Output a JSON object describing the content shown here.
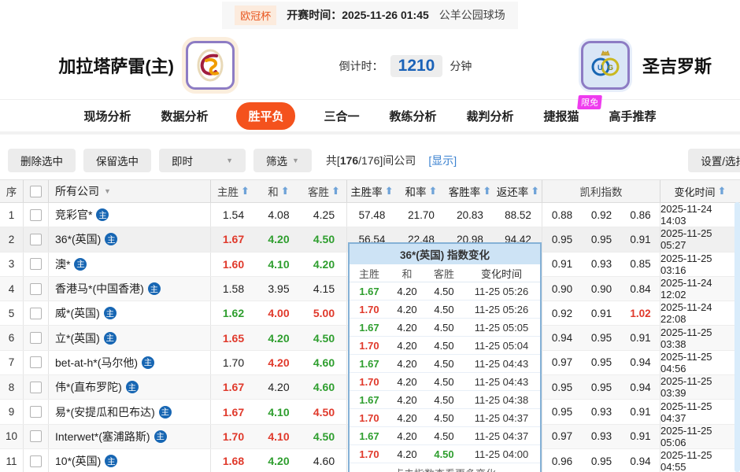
{
  "topbar": {
    "league": "欧冠杯",
    "kickoff_label": "开赛时间：",
    "kickoff_value": "2025-11-26 01:45",
    "venue": "公羊公园球场"
  },
  "header": {
    "home_name": "加拉塔萨雷(主)",
    "away_name": "圣吉罗斯",
    "home_logo": "galatasaray-crest",
    "away_logo": "union-sg-crest",
    "countdown_label": "倒计时：",
    "countdown_value": "1210",
    "countdown_unit": "分钟"
  },
  "nav": {
    "items": [
      "现场分析",
      "数据分析",
      "胜平负",
      "三合一",
      "教练分析",
      "裁判分析",
      "捷报猫",
      "高手推荐"
    ],
    "active_index": 2,
    "badge_text": "限免"
  },
  "toolbar": {
    "delete_btn": "删除选中",
    "keep_btn": "保留选中",
    "instant_dropdown": "即时",
    "filter_dropdown": "筛选",
    "count_prefix": "共[",
    "count_current": "176",
    "count_rest": "/176]间公司",
    "show_link": "[显示]",
    "settings_btn": "设置/选择"
  },
  "table": {
    "headers": {
      "index": "序",
      "company": "所有公司",
      "home": "主胜",
      "draw": "和",
      "away": "客胜",
      "home_rate": "主胜率",
      "draw_rate": "和率",
      "away_rate": "客胜率",
      "return_rate": "返还率",
      "kelly": "凯利指数",
      "change_time": "变化时间"
    },
    "home_badge": "主",
    "rows": [
      {
        "no": "1",
        "company": "竞彩官*",
        "odds": [
          [
            "1.54",
            "k"
          ],
          [
            "4.08",
            "k"
          ],
          [
            "4.25",
            "k"
          ]
        ],
        "rates": [
          "57.48",
          "21.70",
          "20.83",
          "88.52"
        ],
        "kelly": [
          [
            "0.88",
            "k"
          ],
          [
            "0.92",
            "k"
          ],
          [
            "0.86",
            "k"
          ]
        ],
        "time": "2025-11-24 14:03",
        "hl": false
      },
      {
        "no": "2",
        "company": "36*(英国)",
        "odds": [
          [
            "1.67",
            "r"
          ],
          [
            "4.20",
            "g"
          ],
          [
            "4.50",
            "g"
          ]
        ],
        "rates": [
          "56.54",
          "22.48",
          "20.98",
          "94.42"
        ],
        "kelly": [
          [
            "0.95",
            "k"
          ],
          [
            "0.95",
            "k"
          ],
          [
            "0.91",
            "k"
          ]
        ],
        "time": "2025-11-25 05:27",
        "hl": true
      },
      {
        "no": "3",
        "company": "澳*",
        "odds": [
          [
            "1.60",
            "r"
          ],
          [
            "4.10",
            "g"
          ],
          [
            "4.20",
            "g"
          ]
        ],
        "rates": [
          "",
          "",
          "",
          ""
        ],
        "kelly": [
          [
            "0.91",
            "k"
          ],
          [
            "0.93",
            "k"
          ],
          [
            "0.85",
            "k"
          ]
        ],
        "time": "2025-11-25 03:16",
        "hl": false
      },
      {
        "no": "4",
        "company": "香港马*(中国香港)",
        "odds": [
          [
            "1.58",
            "k"
          ],
          [
            "3.95",
            "k"
          ],
          [
            "4.15",
            "k"
          ]
        ],
        "rates": [
          "",
          "",
          "",
          ""
        ],
        "kelly": [
          [
            "0.90",
            "k"
          ],
          [
            "0.90",
            "k"
          ],
          [
            "0.84",
            "k"
          ]
        ],
        "time": "2025-11-24 12:02",
        "hl": false
      },
      {
        "no": "5",
        "company": "威*(英国)",
        "odds": [
          [
            "1.62",
            "g"
          ],
          [
            "4.00",
            "r"
          ],
          [
            "5.00",
            "r"
          ]
        ],
        "rates": [
          "",
          "",
          "",
          ""
        ],
        "kelly": [
          [
            "0.92",
            "k"
          ],
          [
            "0.91",
            "k"
          ],
          [
            "1.02",
            "r"
          ]
        ],
        "time": "2025-11-24 22:08",
        "hl": false
      },
      {
        "no": "6",
        "company": "立*(英国)",
        "odds": [
          [
            "1.65",
            "r"
          ],
          [
            "4.20",
            "g"
          ],
          [
            "4.50",
            "g"
          ]
        ],
        "rates": [
          "",
          "",
          "",
          ""
        ],
        "kelly": [
          [
            "0.94",
            "k"
          ],
          [
            "0.95",
            "k"
          ],
          [
            "0.91",
            "k"
          ]
        ],
        "time": "2025-11-25 03:38",
        "hl": false
      },
      {
        "no": "7",
        "company": "bet-at-h*(马尔他)",
        "odds": [
          [
            "1.70",
            "k"
          ],
          [
            "4.20",
            "r"
          ],
          [
            "4.60",
            "g"
          ]
        ],
        "rates": [
          "",
          "",
          "",
          ""
        ],
        "kelly": [
          [
            "0.97",
            "k"
          ],
          [
            "0.95",
            "k"
          ],
          [
            "0.94",
            "k"
          ]
        ],
        "time": "2025-11-25 04:56",
        "hl": false
      },
      {
        "no": "8",
        "company": "伟*(直布罗陀)",
        "odds": [
          [
            "1.67",
            "r"
          ],
          [
            "4.20",
            "k"
          ],
          [
            "4.60",
            "g"
          ]
        ],
        "rates": [
          "",
          "",
          "",
          ""
        ],
        "kelly": [
          [
            "0.95",
            "k"
          ],
          [
            "0.95",
            "k"
          ],
          [
            "0.94",
            "k"
          ]
        ],
        "time": "2025-11-25 03:39",
        "hl": false
      },
      {
        "no": "9",
        "company": "易*(安提瓜和巴布达)",
        "odds": [
          [
            "1.67",
            "r"
          ],
          [
            "4.10",
            "g"
          ],
          [
            "4.50",
            "r"
          ]
        ],
        "rates": [
          "",
          "",
          "",
          ""
        ],
        "kelly": [
          [
            "0.95",
            "k"
          ],
          [
            "0.93",
            "k"
          ],
          [
            "0.91",
            "k"
          ]
        ],
        "time": "2025-11-25 04:37",
        "hl": false
      },
      {
        "no": "10",
        "company": "Interwet*(塞浦路斯)",
        "odds": [
          [
            "1.70",
            "r"
          ],
          [
            "4.10",
            "r"
          ],
          [
            "4.50",
            "g"
          ]
        ],
        "rates": [
          "",
          "",
          "",
          ""
        ],
        "kelly": [
          [
            "0.97",
            "k"
          ],
          [
            "0.93",
            "k"
          ],
          [
            "0.91",
            "k"
          ]
        ],
        "time": "2025-11-25 05:06",
        "hl": false
      },
      {
        "no": "11",
        "company": "10*(英国)",
        "odds": [
          [
            "1.68",
            "r"
          ],
          [
            "4.20",
            "g"
          ],
          [
            "4.60",
            "k"
          ]
        ],
        "rates": [
          "",
          "",
          "",
          ""
        ],
        "kelly": [
          [
            "0.96",
            "k"
          ],
          [
            "0.95",
            "k"
          ],
          [
            "0.94",
            "k"
          ]
        ],
        "time": "2025-11-25 04:55",
        "hl": false
      }
    ]
  },
  "popup": {
    "title": "36*(英国) 指数变化",
    "col_home": "主胜",
    "col_draw": "和",
    "col_away": "客胜",
    "col_time": "变化时间",
    "rows": [
      {
        "h": [
          "1.67",
          "g"
        ],
        "d": [
          "4.20",
          "k"
        ],
        "a": [
          "4.50",
          "k"
        ],
        "t": "11-25 05:26"
      },
      {
        "h": [
          "1.70",
          "r"
        ],
        "d": [
          "4.20",
          "k"
        ],
        "a": [
          "4.50",
          "k"
        ],
        "t": "11-25 05:26"
      },
      {
        "h": [
          "1.67",
          "g"
        ],
        "d": [
          "4.20",
          "k"
        ],
        "a": [
          "4.50",
          "k"
        ],
        "t": "11-25 05:05"
      },
      {
        "h": [
          "1.70",
          "r"
        ],
        "d": [
          "4.20",
          "k"
        ],
        "a": [
          "4.50",
          "k"
        ],
        "t": "11-25 05:04"
      },
      {
        "h": [
          "1.67",
          "g"
        ],
        "d": [
          "4.20",
          "k"
        ],
        "a": [
          "4.50",
          "k"
        ],
        "t": "11-25 04:43"
      },
      {
        "h": [
          "1.70",
          "r"
        ],
        "d": [
          "4.20",
          "k"
        ],
        "a": [
          "4.50",
          "k"
        ],
        "t": "11-25 04:43"
      },
      {
        "h": [
          "1.67",
          "g"
        ],
        "d": [
          "4.20",
          "k"
        ],
        "a": [
          "4.50",
          "k"
        ],
        "t": "11-25 04:38"
      },
      {
        "h": [
          "1.70",
          "r"
        ],
        "d": [
          "4.20",
          "k"
        ],
        "a": [
          "4.50",
          "k"
        ],
        "t": "11-25 04:37"
      },
      {
        "h": [
          "1.67",
          "g"
        ],
        "d": [
          "4.20",
          "k"
        ],
        "a": [
          "4.50",
          "k"
        ],
        "t": "11-25 04:37"
      },
      {
        "h": [
          "1.70",
          "r"
        ],
        "d": [
          "4.20",
          "k"
        ],
        "a": [
          "4.50",
          "g"
        ],
        "t": "11-25 04:00"
      }
    ],
    "footer": "点击指数查看更多变化"
  },
  "colors": {
    "accent_orange": "#f4521d",
    "odds_up_red": "#e0392b",
    "odds_down_green": "#2e9e2e",
    "link_blue": "#3b82d0",
    "countdown_blue": "#1a62b8",
    "badge_pink": "#ee3cee",
    "popup_border": "#85b1d6",
    "popup_header_bg": "#cde3f5",
    "home_badge_blue": "#1766b3"
  }
}
